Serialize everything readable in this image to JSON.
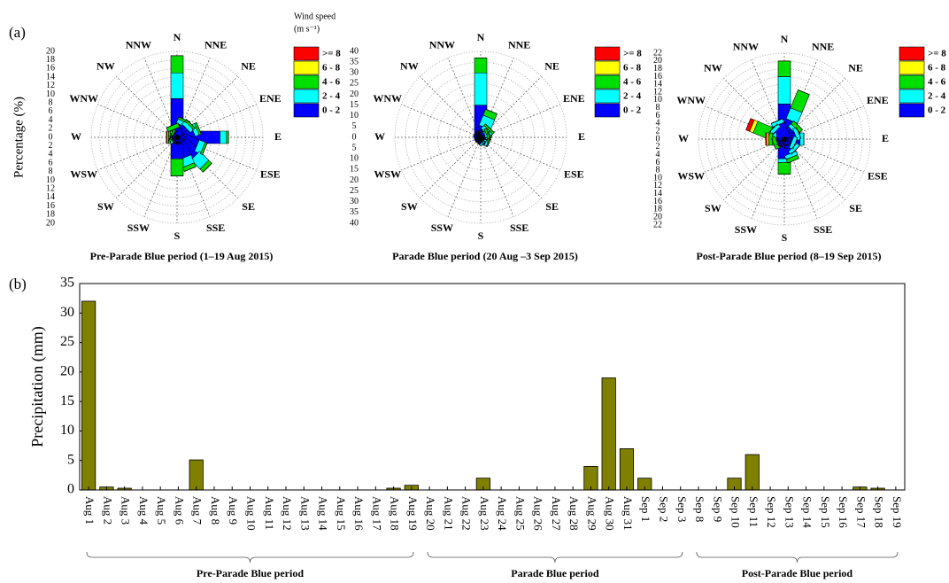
{
  "chart_data": [
    {
      "type": "windrose",
      "panel_label": "(a)",
      "ylabel": "Percentage (%)",
      "title": "Pre-Parade Blue period (1–19 Aug 2015)",
      "legend_title": [
        "Wind speed",
        "(m s⁻¹)"
      ],
      "categories": [
        "N",
        "NNE",
        "NE",
        "ENE",
        "E",
        "ESE",
        "SE",
        "SSE",
        "S",
        "SSW",
        "SW",
        "WSW",
        "W",
        "WNW",
        "NW",
        "NNW"
      ],
      "rlim": [
        0,
        20
      ],
      "rticks": [
        0,
        2,
        4,
        6,
        8,
        10,
        12,
        14,
        16,
        18,
        20
      ],
      "series": [
        {
          "name": "0 - 2",
          "color": "#0000ff",
          "values": [
            9,
            3,
            3,
            4,
            10,
            5,
            6,
            5,
            5,
            1,
            1,
            1,
            1,
            1,
            1,
            2
          ]
        },
        {
          "name": "2 - 4",
          "color": "#00ffff",
          "values": [
            6,
            1,
            1,
            1,
            1.5,
            1.5,
            3,
            2,
            0,
            0,
            0,
            0,
            0.5,
            0,
            0,
            0
          ]
        },
        {
          "name": "4 - 6",
          "color": "#00e000",
          "values": [
            4,
            0.5,
            0.5,
            0.5,
            0.5,
            0.5,
            1,
            1,
            4,
            0,
            0,
            0,
            0.5,
            0.5,
            0,
            1
          ]
        },
        {
          "name": "6 - 8",
          "color": "#ffff00",
          "values": [
            0,
            0,
            0,
            0,
            0,
            0,
            0,
            0,
            0,
            0,
            0,
            0,
            0.3,
            0,
            0,
            0
          ]
        },
        {
          "name": ">= 8",
          "color": "#ff0000",
          "values": [
            0,
            0,
            0,
            0,
            0,
            0,
            0,
            0,
            0,
            0,
            0,
            0,
            0.2,
            0,
            0,
            0
          ]
        }
      ]
    },
    {
      "type": "windrose",
      "title": "Parade Blue period (20 Aug –3 Sep 2015)",
      "categories": [
        "N",
        "NNE",
        "NE",
        "ENE",
        "E",
        "ESE",
        "SE",
        "SSE",
        "S",
        "SSW",
        "SW",
        "WSW",
        "W",
        "WNW",
        "NW",
        "NNW"
      ],
      "rlim": [
        0,
        40
      ],
      "rticks": [
        0,
        5,
        10,
        15,
        20,
        25,
        30,
        35,
        40
      ],
      "series": [
        {
          "name": "0 - 2",
          "color": "#0000ff",
          "values": [
            15,
            5,
            3,
            2,
            2,
            3,
            2,
            1,
            1,
            1,
            1,
            1,
            1,
            1,
            1,
            2
          ]
        },
        {
          "name": "2 - 4",
          "color": "#00ffff",
          "values": [
            15,
            5,
            2,
            1,
            1,
            1,
            1,
            0,
            0,
            0,
            0,
            0,
            0,
            0,
            0,
            0
          ]
        },
        {
          "name": "4 - 6",
          "color": "#00e000",
          "values": [
            7,
            3,
            1,
            1,
            1,
            0.5,
            0,
            0,
            0,
            0,
            0,
            0,
            0,
            0,
            0,
            0
          ]
        },
        {
          "name": "6 - 8",
          "color": "#ffff00",
          "values": [
            0,
            0,
            0,
            0,
            0,
            0,
            0,
            0,
            0,
            0,
            0,
            0,
            0,
            0,
            0,
            0
          ]
        },
        {
          "name": ">= 8",
          "color": "#ff0000",
          "values": [
            0,
            0,
            0,
            0,
            0,
            0,
            0,
            0,
            0,
            0,
            0,
            0,
            0,
            0,
            0,
            0
          ]
        }
      ]
    },
    {
      "type": "windrose",
      "title": "Post-Parade Blue period (8–19 Sep 2015)",
      "categories": [
        "N",
        "NNE",
        "NE",
        "ENE",
        "E",
        "ESE",
        "SE",
        "SSE",
        "S",
        "SSW",
        "SW",
        "WSW",
        "W",
        "WNW",
        "NW",
        "NNW"
      ],
      "rlim": [
        0,
        22
      ],
      "rticks": [
        0,
        2,
        4,
        6,
        8,
        10,
        12,
        14,
        16,
        18,
        20,
        22
      ],
      "series": [
        {
          "name": "0 - 2",
          "color": "#0000ff",
          "values": [
            9,
            5,
            3,
            3,
            4,
            2,
            3,
            4,
            5,
            2,
            1,
            2,
            2,
            3,
            3,
            4
          ]
        },
        {
          "name": "2 - 4",
          "color": "#00ffff",
          "values": [
            7,
            3,
            1,
            1,
            1,
            1,
            1,
            1,
            1,
            0,
            0,
            0,
            1,
            1,
            1,
            1
          ]
        },
        {
          "name": "4 - 6",
          "color": "#00e000",
          "values": [
            4,
            5,
            1,
            0,
            0,
            0,
            0,
            1,
            3,
            0,
            0,
            1,
            1,
            4,
            0,
            0
          ]
        },
        {
          "name": "6 - 8",
          "color": "#ffff00",
          "values": [
            0,
            0,
            0,
            0,
            0,
            0,
            0,
            0,
            0,
            0,
            0,
            0,
            0.5,
            1,
            0,
            0
          ]
        },
        {
          "name": ">= 8",
          "color": "#ff0000",
          "values": [
            0,
            0,
            0,
            0,
            0,
            0,
            0,
            0,
            0,
            0,
            0,
            0,
            0.3,
            1,
            0,
            0
          ]
        }
      ]
    },
    {
      "type": "bar",
      "panel_label": "(b)",
      "ylabel": "Precipitation (mm)",
      "color": "#808000",
      "ylim": [
        0,
        35
      ],
      "yticks": [
        0,
        5,
        10,
        15,
        20,
        25,
        30,
        35
      ],
      "groups": [
        {
          "label": "Pre-Parade Blue period",
          "categories": [
            "Aug 1",
            "Aug 2",
            "Aug 3",
            "Aug 4",
            "Aug 5",
            "Aug 6",
            "Aug 7",
            "Aug 8",
            "Aug 9",
            "Aug 10",
            "Aug 11",
            "Aug 12",
            "Aug 13",
            "Aug 14",
            "Aug 15",
            "Aug 16",
            "Aug 17",
            "Aug 18",
            "Aug 19"
          ],
          "values": [
            32,
            0.5,
            0.3,
            0,
            0,
            0,
            5.1,
            0,
            0,
            0,
            0,
            0,
            0,
            0,
            0,
            0,
            0,
            0.3,
            0.8
          ]
        },
        {
          "label": "Parade Blue period",
          "categories": [
            "Aug 20",
            "Aug 21",
            "Aug 22",
            "Aug 23",
            "Aug 24",
            "Aug 25",
            "Aug 26",
            "Aug 27",
            "Aug 28",
            "Aug 29",
            "Aug 30",
            "Aug 31",
            "Sep 1",
            "Sep 2",
            "Sep 3"
          ],
          "values": [
            0,
            0,
            0,
            2,
            0,
            0,
            0,
            0,
            0,
            4,
            19,
            7,
            2,
            0,
            0
          ]
        },
        {
          "label": "Post-Parade Blue period",
          "categories": [
            "Sep 8",
            "Sep 9",
            "Sep 10",
            "Sep 11",
            "Sep 12",
            "Sep 13",
            "Sep 14",
            "Sep 15",
            "Sep 16",
            "Sep 17",
            "Sep 18",
            "Sep 19"
          ],
          "values": [
            0,
            0,
            2,
            6,
            0,
            0,
            0,
            0,
            0,
            0.5,
            0.3,
            0
          ]
        }
      ]
    }
  ]
}
